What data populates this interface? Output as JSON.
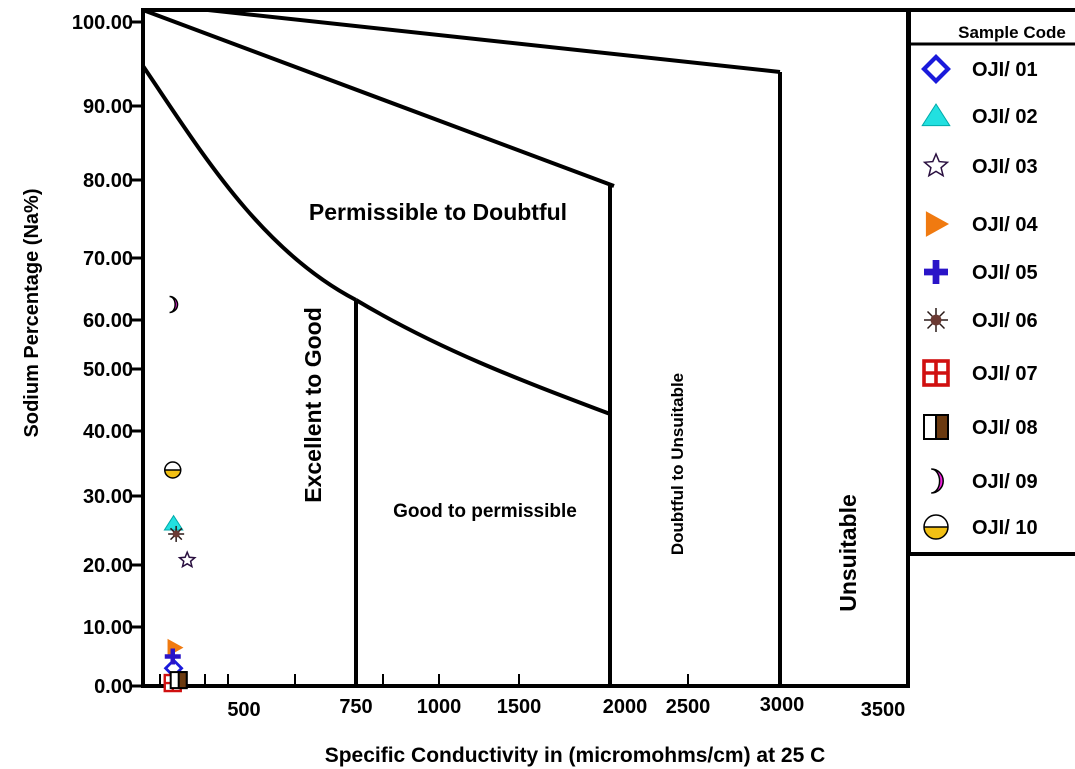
{
  "chart_data": {
    "type": "scatter",
    "title": "",
    "xlabel": "Specific Conductivity in (micromohms/cm) at 25 C",
    "ylabel": "Sodium Percentage (Na%)",
    "x_ticks": [
      "500",
      "750",
      "1000",
      "1500",
      "2000",
      "2500",
      "3000",
      "3500"
    ],
    "y_ticks": [
      "0.00",
      "10.00",
      "20.00",
      "30.00",
      "40.00",
      "50.00",
      "60.00",
      "70.00",
      "80.00",
      "90.00",
      "100.00"
    ],
    "ylim": [
      0,
      100
    ],
    "regions": [
      "Excellent to Good",
      "Good to permissible",
      "Permissible to Doubtful",
      "Doubtful to Unsuitable",
      "Unsuitable"
    ],
    "legend": {
      "title": "Sample Code",
      "position": "top-right"
    },
    "series": [
      {
        "name": "OJI/ 01",
        "marker": "diamond",
        "color": "#1a1adb",
        "x": 180,
        "y": 3
      },
      {
        "name": "OJI/ 02",
        "marker": "triangle",
        "color": "#22e0e0",
        "x": 180,
        "y": 26
      },
      {
        "name": "OJI/ 03",
        "marker": "star",
        "color": "#ffffff",
        "x": 260,
        "y": 20.7
      },
      {
        "name": "OJI/ 04",
        "marker": "right-triangle",
        "color": "#f07a10",
        "x": 185,
        "y": 6.5
      },
      {
        "name": "OJI/ 05",
        "marker": "plus",
        "color": "#2a14c8",
        "x": 175,
        "y": 5
      },
      {
        "name": "OJI/ 06",
        "marker": "asterisk",
        "color": "#6b3a33",
        "x": 195,
        "y": 24.5
      },
      {
        "name": "OJI/ 07",
        "marker": "grid-square",
        "color": "#d01010",
        "x": 175,
        "y": 0.5
      },
      {
        "name": "OJI/ 08",
        "marker": "half-square",
        "color": "#6b3a10",
        "x": 210,
        "y": 1
      },
      {
        "name": "OJI/ 09",
        "marker": "crescent",
        "color": "#ee22dd",
        "x": 175,
        "y": 62.5
      },
      {
        "name": "OJI/ 10",
        "marker": "half-circle",
        "color": "#f2c014",
        "x": 175,
        "y": 34
      }
    ]
  }
}
